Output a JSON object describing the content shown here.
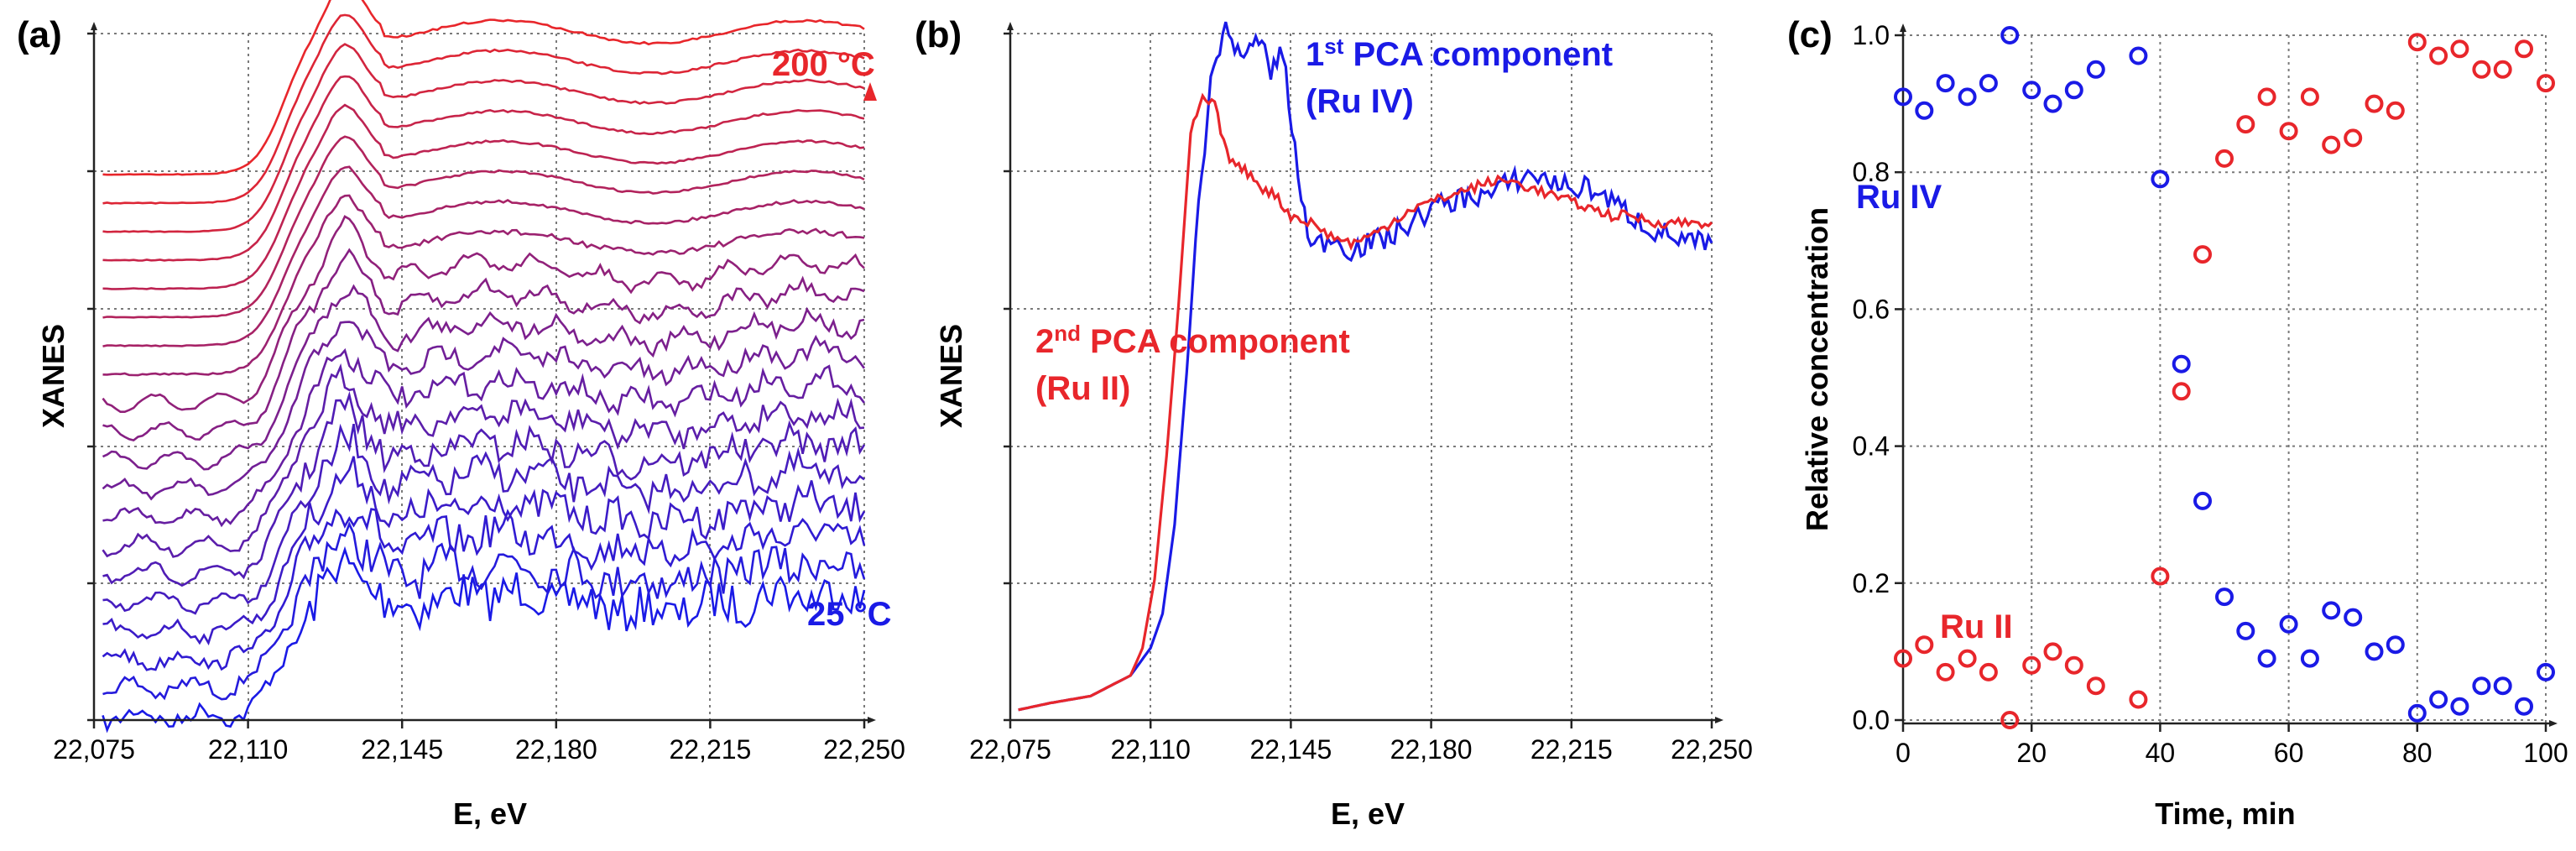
{
  "colors": {
    "red": "#e8262b",
    "blue": "#1a1ae6",
    "grid": "#7a7a7a",
    "axis": "#222222",
    "text": "#000000"
  },
  "chart_data": [
    {
      "panel_label": "(a)",
      "type": "line",
      "title": "",
      "xlabel": "E, eV",
      "ylabel": "XANES",
      "xlim": [
        22075,
        22250
      ],
      "xticks": [
        "22,075",
        "22,110",
        "22,145",
        "22,180",
        "22,215",
        "22,250"
      ],
      "num_spectra": 20,
      "temperature_start": "25 °C",
      "temperature_end": "200 °C",
      "annotation_top": "200 °C",
      "annotation_bottom": "25 °C",
      "series_description": "Stack of 20 offset XANES spectra colored from blue (25 °C) to red (200 °C); edge rises near 22,115 eV with white line near 22,130-22,140 eV"
    },
    {
      "panel_label": "(b)",
      "type": "line",
      "title": "",
      "xlabel": "E, eV",
      "ylabel": "XANES",
      "xlim": [
        22075,
        22250
      ],
      "xticks": [
        "22,075",
        "22,110",
        "22,145",
        "22,180",
        "22,215",
        "22,250"
      ],
      "series": [
        {
          "name": "1st PCA component (Ru IV)",
          "color": "blue",
          "x": [
            22077,
            22085,
            22095,
            22105,
            22110,
            22113,
            22116,
            22119,
            22122,
            22125,
            22128,
            22131,
            22134,
            22137,
            22140,
            22143,
            22146,
            22150,
            22155,
            22160,
            22165,
            22170,
            22175,
            22180,
            22185,
            22190,
            22195,
            22200,
            22205,
            22210,
            22215,
            22220,
            22225,
            22230,
            22235,
            22240,
            22245,
            22250
          ],
          "y": [
            0.01,
            0.02,
            0.03,
            0.06,
            0.1,
            0.15,
            0.28,
            0.5,
            0.75,
            0.92,
            1.0,
            0.98,
            0.96,
            0.99,
            0.94,
            0.97,
            0.82,
            0.68,
            0.7,
            0.68,
            0.69,
            0.7,
            0.72,
            0.74,
            0.75,
            0.76,
            0.76,
            0.78,
            0.79,
            0.78,
            0.77,
            0.77,
            0.75,
            0.73,
            0.71,
            0.7,
            0.69,
            0.69
          ]
        },
        {
          "name": "2nd PCA component (Ru II)",
          "color": "red",
          "x": [
            22077,
            22085,
            22095,
            22105,
            22108,
            22111,
            22114,
            22117,
            22120,
            22123,
            22126,
            22129,
            22132,
            22135,
            22138,
            22141,
            22145,
            22150,
            22155,
            22160,
            22165,
            22170,
            22175,
            22180,
            22185,
            22190,
            22195,
            22200,
            22205,
            22210,
            22215,
            22220,
            22225,
            22230,
            22235,
            22240,
            22245,
            22250
          ],
          "y": [
            0.01,
            0.02,
            0.03,
            0.06,
            0.1,
            0.2,
            0.38,
            0.6,
            0.85,
            0.9,
            0.89,
            0.82,
            0.8,
            0.79,
            0.77,
            0.76,
            0.73,
            0.72,
            0.7,
            0.69,
            0.7,
            0.72,
            0.74,
            0.75,
            0.76,
            0.77,
            0.78,
            0.78,
            0.77,
            0.76,
            0.75,
            0.74,
            0.73,
            0.73,
            0.72,
            0.72,
            0.72,
            0.72
          ]
        }
      ],
      "annotations": [
        {
          "sup_prefix": "1",
          "sup": "st",
          "text": " PCA component",
          "line2": "(Ru IV)",
          "color": "blue"
        },
        {
          "sup_prefix": "2",
          "sup": "nd",
          "text": " PCA component",
          "line2": "(Ru II)",
          "color": "red"
        }
      ]
    },
    {
      "panel_label": "(c)",
      "type": "scatter",
      "title": "",
      "xlabel": "Time, min",
      "ylabel": "Relative concentration",
      "xlim": [
        0,
        100
      ],
      "ylim": [
        0,
        1
      ],
      "xticks": [
        "0",
        "20",
        "40",
        "60",
        "80",
        "100"
      ],
      "yticks": [
        "0.0",
        "0.2",
        "0.4",
        "0.6",
        "0.8",
        "1.0"
      ],
      "series": [
        {
          "name": "Ru IV",
          "color": "blue",
          "x": [
            0,
            3.3,
            6.6,
            10,
            13.3,
            16.6,
            20,
            23.3,
            26.6,
            30,
            36.6,
            40,
            43.3,
            46.6,
            50,
            53.3,
            56.6,
            60,
            63.3,
            66.6,
            70,
            73.3,
            76.6,
            80,
            83.3,
            86.6,
            90,
            93.3,
            96.6,
            100
          ],
          "y": [
            0.91,
            0.89,
            0.93,
            0.91,
            0.93,
            1.0,
            0.92,
            0.9,
            0.92,
            0.95,
            0.97,
            0.79,
            0.52,
            0.32,
            0.18,
            0.13,
            0.09,
            0.14,
            0.09,
            0.16,
            0.15,
            0.1,
            0.11,
            0.01,
            0.03,
            0.02,
            0.05,
            0.05,
            0.02,
            0.07
          ]
        },
        {
          "name": "Ru II",
          "color": "red",
          "x": [
            0,
            3.3,
            6.6,
            10,
            13.3,
            16.6,
            20,
            23.3,
            26.6,
            30,
            36.6,
            40,
            43.3,
            46.6,
            50,
            53.3,
            56.6,
            60,
            63.3,
            66.6,
            70,
            73.3,
            76.6,
            80,
            83.3,
            86.6,
            90,
            93.3,
            96.6,
            100
          ],
          "y": [
            0.09,
            0.11,
            0.07,
            0.09,
            0.07,
            0.0,
            0.08,
            0.1,
            0.08,
            0.05,
            0.03,
            0.21,
            0.48,
            0.68,
            0.82,
            0.87,
            0.91,
            0.86,
            0.91,
            0.84,
            0.85,
            0.9,
            0.89,
            0.99,
            0.97,
            0.98,
            0.95,
            0.95,
            0.98,
            0.93
          ]
        }
      ],
      "labels": [
        {
          "text": "Ru IV",
          "color": "blue"
        },
        {
          "text": "Ru II",
          "color": "red"
        }
      ]
    }
  ]
}
